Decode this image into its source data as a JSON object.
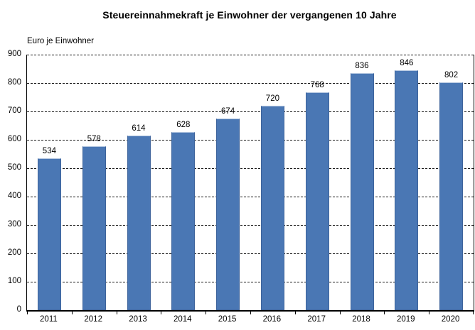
{
  "title": "Steuereinnahmekraft je Einwohner der vergangenen 10 Jahre",
  "axis_unit_label": "Euro je Einwohner",
  "chart_data": {
    "type": "bar",
    "title": "Steuereinnahmekraft je Einwohner der vergangenen 10 Jahre",
    "xlabel": "",
    "ylabel": "Euro je Einwohner",
    "categories": [
      "2011",
      "2012",
      "2013",
      "2014",
      "2015",
      "2016",
      "2017",
      "2018",
      "2019",
      "2020"
    ],
    "values": [
      534,
      578,
      614,
      628,
      674,
      720,
      768,
      836,
      846,
      802
    ],
    "value_labels_shown": true,
    "ylim": [
      0,
      900
    ],
    "ytick_step": 100,
    "yticks": [
      0,
      100,
      200,
      300,
      400,
      500,
      600,
      700,
      800,
      900
    ],
    "grid": "horizontal-dashed",
    "legend": "none",
    "colors": {
      "bar_fill": "#4a77b4",
      "bar_border": "#3d639b",
      "bar_top_highlight": "#b3c6e0",
      "gridline": "#1a1a1a",
      "axis": "#000000",
      "text": "#000000",
      "background": "#ffffff"
    }
  }
}
